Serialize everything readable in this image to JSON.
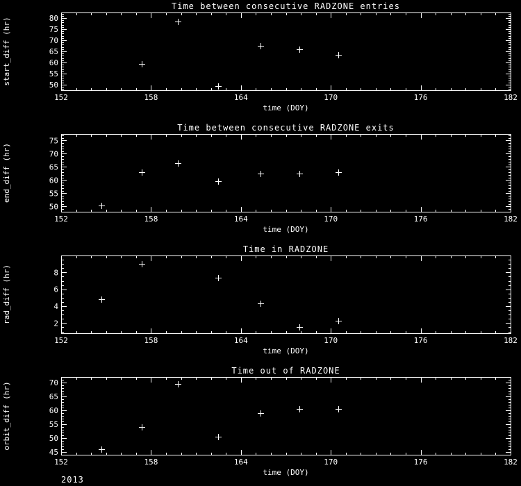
{
  "footer": {
    "year": "2013"
  },
  "style": {
    "background": "#000000",
    "foreground": "#ffffff",
    "marker_glyph": "plus"
  },
  "chart_data": [
    {
      "type": "scatter",
      "title": "Time between consecutive RADZONE entries",
      "xlabel": "time (DOY)",
      "ylabel": "start_diff (hr)",
      "xlim": [
        152,
        182
      ],
      "xticks": [
        152,
        158,
        164,
        170,
        176,
        182
      ],
      "x_minor_step": 1,
      "ylim": [
        47.5,
        82.5
      ],
      "yticks": [
        50,
        55,
        60,
        65,
        70,
        75,
        80
      ],
      "y_minor_step": 1,
      "legend": "none",
      "grid": false,
      "points": {
        "x": [
          157.4,
          159.8,
          162.5,
          165.3,
          167.9,
          170.5
        ],
        "y": [
          59.5,
          78.5,
          49.5,
          67.5,
          66.0,
          63.5
        ]
      }
    },
    {
      "type": "scatter",
      "title": "Time between consecutive RADZONE exits",
      "xlabel": "time (DOY)",
      "ylabel": "end_diff (hr)",
      "xlim": [
        152,
        182
      ],
      "xticks": [
        152,
        158,
        164,
        170,
        176,
        182
      ],
      "x_minor_step": 1,
      "ylim": [
        48,
        77.5
      ],
      "yticks": [
        50,
        55,
        60,
        65,
        70,
        75
      ],
      "y_minor_step": 1,
      "legend": "none",
      "grid": false,
      "points": {
        "x": [
          154.7,
          157.4,
          159.8,
          162.5,
          165.3,
          167.9,
          170.5
        ],
        "y": [
          50.5,
          63.0,
          66.5,
          59.5,
          62.5,
          62.5,
          63.0
        ]
      }
    },
    {
      "type": "scatter",
      "title": "Time in RADZONE",
      "xlabel": "time (DOY)",
      "ylabel": "rad_diff (hr)",
      "xlim": [
        152,
        182
      ],
      "xticks": [
        152,
        158,
        164,
        170,
        176,
        182
      ],
      "x_minor_step": 1,
      "ylim": [
        0.8,
        10
      ],
      "yticks": [
        2,
        4,
        6,
        8
      ],
      "y_minor_step": 0.5,
      "legend": "none",
      "grid": false,
      "points": {
        "x": [
          154.7,
          157.4,
          162.5,
          165.3,
          167.9,
          170.5
        ],
        "y": [
          4.8,
          9.0,
          7.4,
          4.3,
          1.5,
          2.3
        ]
      }
    },
    {
      "type": "scatter",
      "title": "Time out of RADZONE",
      "xlabel": "time (DOY)",
      "ylabel": "orbit_diff (hr)",
      "xlim": [
        152,
        182
      ],
      "xticks": [
        152,
        158,
        164,
        170,
        176,
        182
      ],
      "x_minor_step": 1,
      "ylim": [
        44,
        72
      ],
      "yticks": [
        45,
        50,
        55,
        60,
        65,
        70
      ],
      "y_minor_step": 1,
      "legend": "none",
      "grid": false,
      "points": {
        "x": [
          154.7,
          157.4,
          159.8,
          162.5,
          165.3,
          167.9,
          170.5
        ],
        "y": [
          46.0,
          54.0,
          69.5,
          50.5,
          59.0,
          60.5,
          60.5
        ]
      }
    }
  ]
}
